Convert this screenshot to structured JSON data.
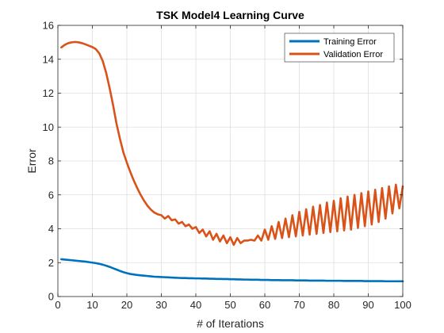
{
  "chart_data": {
    "type": "line",
    "title": "TSK Model4 Learning Curve",
    "xlabel": "# of Iterations",
    "ylabel": "Error",
    "xlim": [
      0,
      100
    ],
    "ylim": [
      0,
      16
    ],
    "xticks": [
      0,
      10,
      20,
      30,
      40,
      50,
      60,
      70,
      80,
      90,
      100
    ],
    "yticks": [
      0,
      2,
      4,
      6,
      8,
      10,
      12,
      14,
      16
    ],
    "grid": true,
    "legend_position": "top-right",
    "series": [
      {
        "name": "Training Error",
        "color": "#0072BD",
        "x": [
          1,
          2,
          3,
          4,
          5,
          6,
          7,
          8,
          9,
          10,
          11,
          12,
          13,
          14,
          15,
          16,
          17,
          18,
          19,
          20,
          21,
          22,
          23,
          24,
          25,
          26,
          27,
          28,
          29,
          30,
          31,
          32,
          33,
          34,
          35,
          36,
          37,
          38,
          39,
          40,
          41,
          42,
          43,
          44,
          45,
          46,
          47,
          48,
          49,
          50,
          51,
          52,
          53,
          54,
          55,
          56,
          57,
          58,
          59,
          60,
          61,
          62,
          63,
          64,
          65,
          66,
          67,
          68,
          69,
          70,
          71,
          72,
          73,
          74,
          75,
          76,
          77,
          78,
          79,
          80,
          81,
          82,
          83,
          84,
          85,
          86,
          87,
          88,
          89,
          90,
          91,
          92,
          93,
          94,
          95,
          96,
          97,
          98,
          99,
          100
        ],
        "y": [
          2.2,
          2.18,
          2.16,
          2.14,
          2.12,
          2.1,
          2.08,
          2.06,
          2.03,
          2.0,
          1.97,
          1.93,
          1.88,
          1.82,
          1.75,
          1.67,
          1.59,
          1.51,
          1.44,
          1.38,
          1.33,
          1.3,
          1.27,
          1.25,
          1.23,
          1.21,
          1.19,
          1.17,
          1.16,
          1.15,
          1.14,
          1.13,
          1.12,
          1.11,
          1.1,
          1.09,
          1.09,
          1.08,
          1.08,
          1.07,
          1.07,
          1.06,
          1.06,
          1.05,
          1.05,
          1.04,
          1.04,
          1.03,
          1.03,
          1.02,
          1.02,
          1.01,
          1.01,
          1.0,
          1.0,
          0.99,
          0.99,
          0.99,
          0.98,
          0.98,
          0.98,
          0.97,
          0.97,
          0.97,
          0.96,
          0.96,
          0.96,
          0.96,
          0.95,
          0.95,
          0.95,
          0.95,
          0.94,
          0.94,
          0.94,
          0.94,
          0.94,
          0.93,
          0.93,
          0.93,
          0.93,
          0.93,
          0.92,
          0.92,
          0.92,
          0.92,
          0.92,
          0.92,
          0.91,
          0.91,
          0.91,
          0.91,
          0.91,
          0.91,
          0.9,
          0.9,
          0.9,
          0.9,
          0.9,
          0.9
        ]
      },
      {
        "name": "Validation Error",
        "color": "#D95319",
        "x": [
          1,
          2,
          3,
          4,
          5,
          6,
          7,
          8,
          9,
          10,
          11,
          12,
          13,
          14,
          15,
          16,
          17,
          18,
          19,
          20,
          21,
          22,
          23,
          24,
          25,
          26,
          27,
          28,
          29,
          30,
          31,
          32,
          33,
          34,
          35,
          36,
          37,
          38,
          39,
          40,
          41,
          42,
          43,
          44,
          45,
          46,
          47,
          48,
          49,
          50,
          51,
          52,
          53,
          54,
          55,
          56,
          57,
          58,
          59,
          60,
          61,
          62,
          63,
          64,
          65,
          66,
          67,
          68,
          69,
          70,
          71,
          72,
          73,
          74,
          75,
          76,
          77,
          78,
          79,
          80,
          81,
          82,
          83,
          84,
          85,
          86,
          87,
          88,
          89,
          90,
          91,
          92,
          93,
          94,
          95,
          96,
          97,
          98,
          99,
          100
        ],
        "y": [
          14.7,
          14.85,
          14.95,
          15.0,
          15.02,
          15.0,
          14.95,
          14.88,
          14.8,
          14.72,
          14.6,
          14.35,
          13.9,
          13.2,
          12.3,
          11.3,
          10.2,
          9.3,
          8.5,
          7.9,
          7.35,
          6.85,
          6.4,
          6.0,
          5.65,
          5.35,
          5.12,
          4.95,
          4.85,
          4.8,
          4.6,
          4.75,
          4.5,
          4.55,
          4.3,
          4.4,
          4.15,
          4.25,
          4.0,
          4.1,
          3.75,
          3.95,
          3.55,
          3.85,
          3.35,
          3.7,
          3.25,
          3.6,
          3.15,
          3.5,
          3.05,
          3.45,
          3.15,
          3.3,
          3.3,
          3.35,
          3.3,
          3.6,
          3.3,
          3.95,
          3.35,
          4.15,
          3.4,
          4.4,
          3.45,
          4.6,
          3.5,
          4.8,
          3.55,
          5.0,
          3.6,
          5.15,
          3.65,
          5.3,
          3.7,
          5.4,
          3.75,
          5.55,
          3.8,
          5.65,
          3.85,
          5.8,
          3.9,
          5.9,
          3.95,
          6.0,
          4.05,
          6.1,
          4.15,
          6.2,
          4.25,
          6.3,
          4.4,
          6.4,
          4.6,
          6.5,
          4.9,
          6.6,
          5.2,
          6.5
        ]
      }
    ]
  }
}
